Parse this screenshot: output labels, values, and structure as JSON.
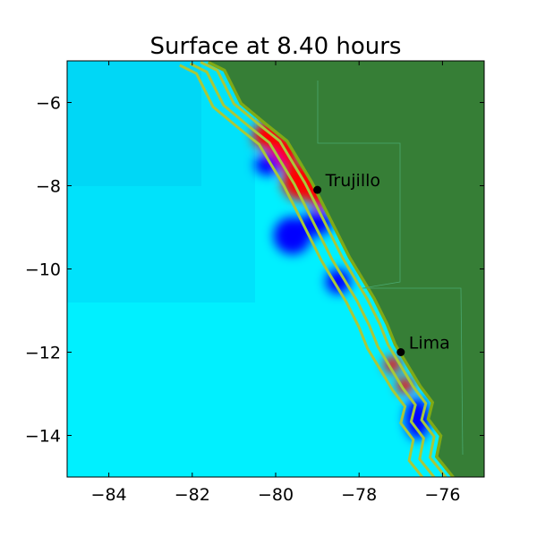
{
  "chart_data": {
    "type": "heatmap",
    "title": "Surface at 8.40 hours",
    "xlabel": "",
    "ylabel": "",
    "xlim": [
      -85,
      -75
    ],
    "ylim": [
      -15,
      -5
    ],
    "x_ticks": [
      -84,
      -82,
      -80,
      -78,
      -76
    ],
    "y_ticks": [
      -14,
      -12,
      -10,
      -8,
      -6
    ],
    "x_tick_labels": [
      "−84",
      "−82",
      "−80",
      "−78",
      "−76"
    ],
    "y_tick_labels": [
      "−14",
      "−12",
      "−10",
      "−8",
      "−6"
    ],
    "grid": false,
    "colors": {
      "ocean_deep": "#00d2f5",
      "ocean_shallow": "#00f5ff",
      "land": "#367e36",
      "land_edge": "#7faa15",
      "contour": "#a8c83a",
      "positive_anomaly": "#ff0000",
      "negative_anomaly": "#0000ff"
    },
    "locations": [
      {
        "name": "Trujillo",
        "lon": -79.0,
        "lat": -8.1
      },
      {
        "name": "Lima",
        "lon": -77.0,
        "lat": -12.0
      }
    ],
    "coastline": [
      [
        -81.6,
        -5.0
      ],
      [
        -81.2,
        -5.2
      ],
      [
        -81.0,
        -5.6
      ],
      [
        -80.8,
        -6.0
      ],
      [
        -80.2,
        -6.5
      ],
      [
        -79.7,
        -6.9
      ],
      [
        -79.4,
        -7.4
      ],
      [
        -79.1,
        -7.9
      ],
      [
        -78.8,
        -8.5
      ],
      [
        -78.5,
        -9.1
      ],
      [
        -78.2,
        -9.7
      ],
      [
        -77.9,
        -10.2
      ],
      [
        -77.6,
        -10.7
      ],
      [
        -77.3,
        -11.3
      ],
      [
        -77.1,
        -11.8
      ],
      [
        -76.8,
        -12.3
      ],
      [
        -76.5,
        -12.8
      ],
      [
        -76.2,
        -13.2
      ],
      [
        -76.3,
        -13.6
      ],
      [
        -76.0,
        -14.0
      ],
      [
        -76.1,
        -14.5
      ],
      [
        -75.7,
        -15.0
      ]
    ],
    "surface_anomalies": [
      {
        "sign": "positive",
        "lon": -80.2,
        "lat": -6.8,
        "r_lon": 0.35,
        "r_lat": 0.35
      },
      {
        "sign": "positive",
        "lon": -79.8,
        "lat": -7.2,
        "r_lon": 0.35,
        "r_lat": 0.4
      },
      {
        "sign": "positive",
        "lon": -79.4,
        "lat": -7.9,
        "r_lon": 0.45,
        "r_lat": 0.45
      },
      {
        "sign": "positive",
        "lon": -78.9,
        "lat": -8.2,
        "r_lon": 0.35,
        "r_lat": 0.35
      },
      {
        "sign": "positive",
        "lon": -77.2,
        "lat": -12.3,
        "r_lon": 0.2,
        "r_lat": 0.2
      },
      {
        "sign": "positive",
        "lon": -76.9,
        "lat": -12.8,
        "r_lon": 0.2,
        "r_lat": 0.2
      },
      {
        "sign": "negative",
        "lon": -79.0,
        "lat": -8.9,
        "r_lon": 0.35,
        "r_lat": 0.3
      },
      {
        "sign": "negative",
        "lon": -79.6,
        "lat": -9.2,
        "r_lon": 0.45,
        "r_lat": 0.45
      },
      {
        "sign": "negative",
        "lon": -78.5,
        "lat": -10.3,
        "r_lon": 0.3,
        "r_lat": 0.3
      },
      {
        "sign": "negative",
        "lon": -76.6,
        "lat": -13.6,
        "r_lon": 0.3,
        "r_lat": 0.5
      },
      {
        "sign": "negative",
        "lon": -80.2,
        "lat": -7.5,
        "r_lon": 0.3,
        "r_lat": 0.25
      }
    ],
    "contour_offsets": [
      0.2,
      0.45,
      0.7
    ]
  }
}
